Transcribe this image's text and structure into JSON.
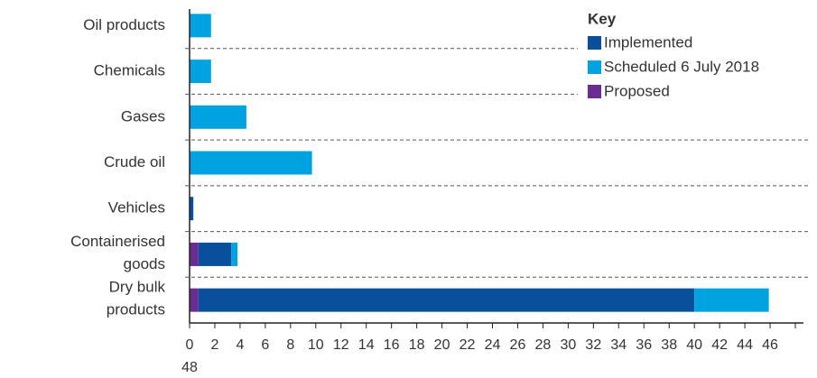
{
  "chart_data": {
    "type": "bar",
    "orientation": "horizontal",
    "stacked": true,
    "categories": [
      "Oil products",
      "Chemicals",
      "Gases",
      "Crude oil",
      "Vehicles",
      "Containerised goods",
      "Dry bulk products"
    ],
    "legend_title": "Key",
    "series": [
      {
        "name": "Implemented",
        "color": "#0a4f9c",
        "values": [
          null,
          null,
          null,
          null,
          0.3,
          2.6,
          39.3
        ]
      },
      {
        "name": "Scheduled 6 July 2018",
        "color": "#00a3e0",
        "values": [
          1.7,
          1.7,
          4.5,
          9.7,
          null,
          0.5,
          5.9
        ]
      },
      {
        "name": "Proposed",
        "color": "#6b2c91",
        "values": [
          null,
          null,
          null,
          null,
          null,
          0.7,
          0.7
        ]
      }
    ],
    "stack_order": [
      2,
      0,
      1
    ],
    "xlim": [
      0,
      48
    ],
    "xticks": [
      0,
      2,
      4,
      6,
      8,
      10,
      12,
      14,
      16,
      18,
      20,
      22,
      24,
      26,
      28,
      30,
      32,
      34,
      36,
      38,
      40,
      42,
      44,
      46,
      48
    ],
    "legend": "upper right"
  }
}
